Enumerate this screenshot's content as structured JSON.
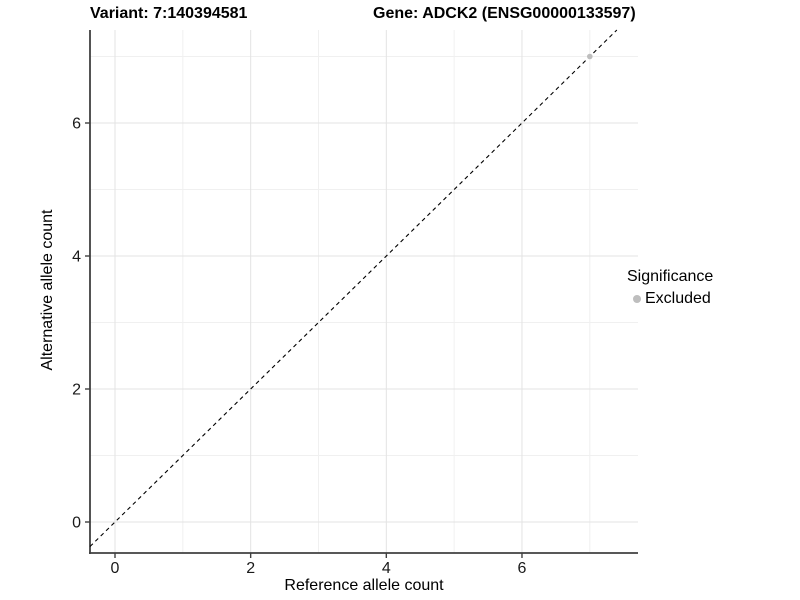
{
  "title": {
    "variant": "Variant: 7:140394581",
    "gene": "Gene: ADCK2 (ENSG00000133597)"
  },
  "axes": {
    "x": {
      "label": "Reference allele count"
    },
    "y": {
      "label": "Alternative allele count"
    }
  },
  "legend": {
    "title": "Significance",
    "items": [
      {
        "label": "Excluded",
        "color": "#bebebe"
      }
    ]
  },
  "chart_data": {
    "type": "scatter",
    "title": "Variant: 7:140394581   Gene: ADCK2 (ENSG00000133597)",
    "xlabel": "Reference allele count",
    "ylabel": "Alternative allele count",
    "x_ticks": [
      0,
      2,
      4,
      6
    ],
    "x_minor": [
      1,
      3,
      5,
      7
    ],
    "y_ticks": [
      0,
      2,
      4,
      6
    ],
    "y_minor": [
      1,
      3,
      5,
      7
    ],
    "xlim": [
      -0.37,
      7.71
    ],
    "ylim": [
      -0.47,
      7.4
    ],
    "grid": true,
    "legend_position": "right",
    "series": [
      {
        "name": "Excluded",
        "color": "#bebebe",
        "points": [
          {
            "x": 7,
            "y": 7
          }
        ]
      }
    ],
    "reference_line": {
      "type": "identity",
      "slope": 1,
      "intercept": 0,
      "style": "dashed",
      "color": "#000000"
    }
  },
  "colors": {
    "background": "#ffffff",
    "axis_line": "#404040",
    "grid_major": "#e3e3e3",
    "grid_minor": "#f0f0f0",
    "tick_label": "#1a1a1a",
    "point": "#bebebe"
  }
}
